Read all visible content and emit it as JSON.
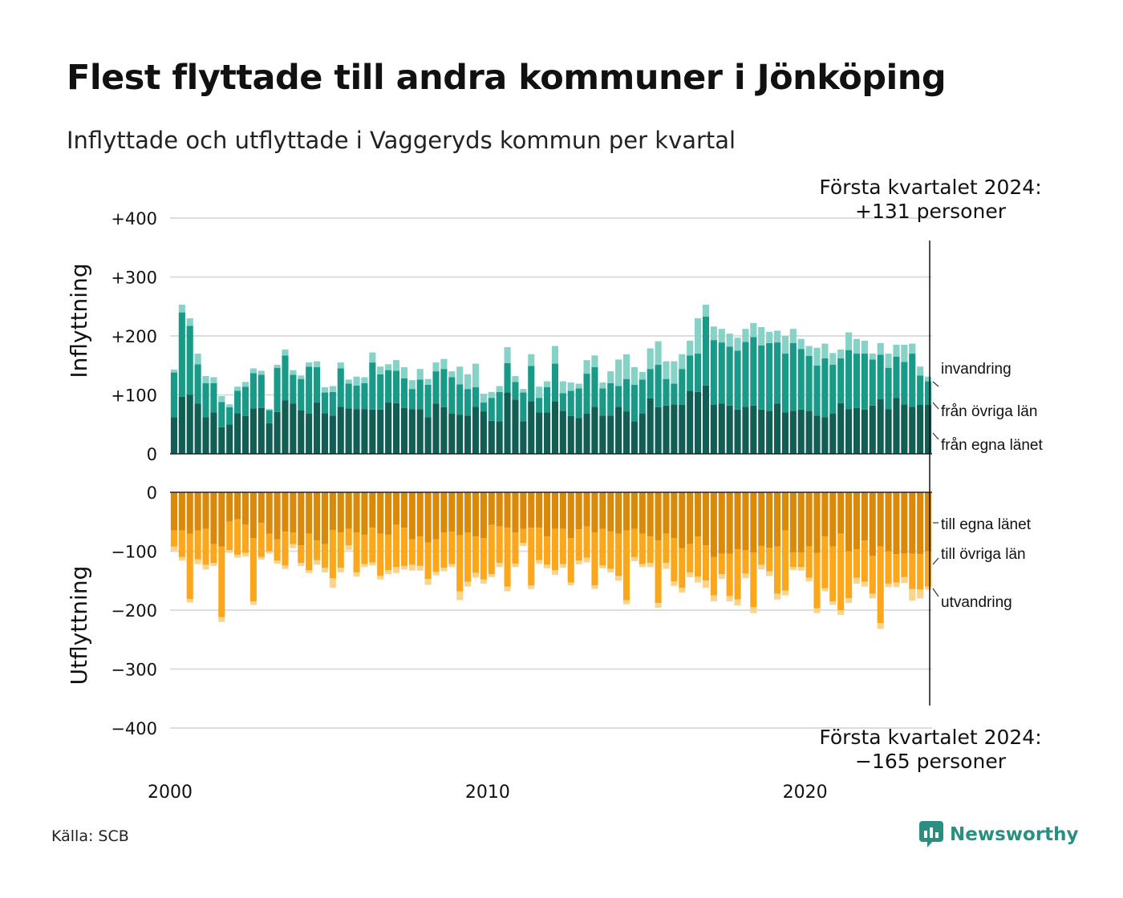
{
  "title": "Flest flyttade till andra kommuner i Jönköping",
  "subtitle": "Inflyttade och utflyttade i Vaggeryds kommun per kvartal",
  "source": "Källa: SCB",
  "brand": "Newsworthy",
  "colors": {
    "in_county": "#125e55",
    "in_other": "#199a88",
    "in_immigration": "#86d2c7",
    "out_county": "#d98a0b",
    "out_other": "#fba71c",
    "out_emigration": "#fad48d",
    "grid": "#dddddd",
    "brand": "#2a8f80"
  },
  "chart_data": {
    "type": "bar",
    "stacked": true,
    "x_start": 2000,
    "x_end": 2024,
    "periods_per_year": 4,
    "xticks": [
      "2000",
      "2010",
      "2020"
    ],
    "panels": [
      {
        "name": "inflyttning",
        "ylabel": "Inflyttning",
        "ylim": [
          0,
          400
        ],
        "yticks": [
          "0",
          "+100",
          "+200",
          "+300",
          "+400"
        ],
        "annotation": [
          "Första kvartalet 2024:",
          "+131 personer"
        ],
        "series": [
          {
            "name": "från egna länet",
            "values": [
              62,
              97,
              100,
              85,
              62,
              70,
              45,
              50,
              69,
              64,
              77,
              78,
              52,
              71,
              91,
              85,
              74,
              68,
              87,
              69,
              65,
              80,
              77,
              76,
              76,
              75,
              75,
              87,
              86,
              78,
              76,
              76,
              62,
              85,
              79,
              68,
              66,
              65,
              80,
              72,
              56,
              55,
              104,
              92,
              55,
              89,
              70,
              70,
              89,
              73,
              64,
              61,
              68,
              80,
              65,
              65,
              80,
              72,
              55,
              68,
              94,
              79,
              82,
              84,
              83,
              107,
              105,
              116,
              83,
              85,
              82,
              75,
              80,
              82,
              75,
              73,
              85,
              70,
              73,
              75,
              73,
              65,
              62,
              68,
              86,
              76,
              78,
              75,
              82,
              93,
              76,
              95,
              84,
              80,
              83,
              83
            ],
            "extra": []
          },
          {
            "name": "från övriga län",
            "values": [
              76,
              143,
              117,
              67,
              58,
              50,
              43,
              29,
              38,
              50,
              60,
              56,
              22,
              75,
              76,
              49,
              53,
              80,
              60,
              35,
              40,
              65,
              42,
              40,
              44,
              80,
              60,
              55,
              55,
              50,
              34,
              50,
              55,
              55,
              65,
              62,
              52,
              45,
              33,
              15,
              39,
              50,
              50,
              30,
              49,
              60,
              25,
              43,
              64,
              30,
              43,
              50,
              68,
              67,
              46,
              55,
              35,
              55,
              62,
              58,
              50,
              72,
              45,
              35,
              61,
              60,
              65,
              117,
              110,
              104,
              100,
              100,
              110,
              116,
              109,
              115,
              104,
              100,
              115,
              103,
              93,
              85,
              100,
              83,
              76,
              100,
              92,
              95,
              78,
              75,
              70,
              70,
              72,
              90,
              50,
              40
            ],
            "extra": []
          },
          {
            "name": "invandring",
            "values": [
              5,
              13,
              13,
              18,
              12,
              10,
              10,
              5,
              7,
              8,
              8,
              7,
              2,
              5,
              10,
              8,
              6,
              7,
              10,
              9,
              10,
              10,
              7,
              15,
              10,
              17,
              13,
              10,
              18,
              19,
              15,
              18,
              10,
              15,
              17,
              10,
              30,
              25,
              40,
              15,
              10,
              10,
              27,
              10,
              6,
              20,
              19,
              10,
              30,
              20,
              14,
              8,
              23,
              20,
              10,
              20,
              45,
              42,
              30,
              13,
              35,
              40,
              30,
              38,
              25,
              25,
              60,
              20,
              23,
              23,
              22,
              22,
              22,
              24,
              31,
              19,
              20,
              30,
              24,
              17,
              17,
              30,
              25,
              20,
              15,
              30,
              25,
              22,
              10,
              20,
              24,
              20,
              29,
              17,
              15,
              8
            ]
          }
        ]
      },
      {
        "name": "utflyttning",
        "ylabel": "Utflyttning",
        "ylim": [
          -400,
          0
        ],
        "yticks": [
          "0",
          "−100",
          "−200",
          "−300",
          "−400"
        ],
        "annotation": [
          "Första kvartalet 2024:",
          "−165 personer"
        ],
        "series": [
          {
            "name": "till egna länet",
            "values": [
              -65,
              -65,
              -70,
              -65,
              -62,
              -88,
              -92,
              -50,
              -46,
              -55,
              -78,
              -52,
              -70,
              -80,
              -67,
              -68,
              -90,
              -70,
              -82,
              -88,
              -64,
              -68,
              -62,
              -68,
              -72,
              -60,
              -70,
              -72,
              -55,
              -60,
              -80,
              -75,
              -85,
              -80,
              -68,
              -67,
              -73,
              -68,
              -75,
              -78,
              -55,
              -58,
              -60,
              -68,
              -62,
              -60,
              -60,
              -75,
              -62,
              -62,
              -78,
              -63,
              -58,
              -68,
              -62,
              -66,
              -70,
              -65,
              -62,
              -70,
              -75,
              -82,
              -70,
              -78,
              -95,
              -88,
              -75,
              -90,
              -110,
              -104,
              -104,
              -97,
              -98,
              -102,
              -91,
              -94,
              -92,
              -65,
              -102,
              -102,
              -92,
              -103,
              -75,
              -92,
              -70,
              -100,
              -97,
              -82,
              -108,
              -92,
              -100,
              -105,
              -104,
              -104,
              -105,
              -100
            ],
            "extra": []
          },
          {
            "name": "till övriga län",
            "values": [
              -27,
              -45,
              -111,
              -49,
              -61,
              -32,
              -120,
              -48,
              -60,
              -48,
              -107,
              -58,
              -30,
              -36,
              -57,
              -20,
              -30,
              -62,
              -33,
              -40,
              -82,
              -60,
              -28,
              -68,
              -50,
              -59,
              -72,
              -60,
              -72,
              -65,
              -43,
              -50,
              -62,
              -55,
              -60,
              -55,
              -95,
              -84,
              -62,
              -70,
              -84,
              -62,
              -100,
              -53,
              -24,
              -98,
              -55,
              -48,
              -70,
              -60,
              -75,
              -53,
              -53,
              -90,
              -62,
              -64,
              -72,
              -118,
              -48,
              -52,
              -45,
              -106,
              -50,
              -73,
              -67,
              -48,
              -68,
              -60,
              -65,
              -35,
              -72,
              -85,
              -40,
              -93,
              -32,
              -40,
              -80,
              -102,
              -25,
              -25,
              -53,
              -94,
              -88,
              -93,
              -130,
              -80,
              -48,
              -70,
              -64,
              -130,
              -55,
              -48,
              -40,
              -60,
              -60,
              -60
            ],
            "extra": []
          },
          {
            "name": "utvandring",
            "values": [
              -8,
              -6,
              -6,
              -8,
              -8,
              -5,
              -8,
              -5,
              -5,
              -6,
              -6,
              -4,
              -4,
              -5,
              -6,
              -7,
              -5,
              -5,
              -8,
              -8,
              -16,
              -8,
              -8,
              -7,
              -5,
              -5,
              -6,
              -7,
              -10,
              -6,
              -10,
              -8,
              -10,
              -6,
              -6,
              -5,
              -15,
              -8,
              -8,
              -7,
              -5,
              -7,
              -8,
              -6,
              -5,
              -6,
              -6,
              -6,
              -8,
              -6,
              -5,
              -6,
              -8,
              -6,
              -5,
              -6,
              -8,
              -7,
              -7,
              -5,
              -7,
              -8,
              -10,
              -8,
              -8,
              -8,
              -10,
              -12,
              -10,
              -8,
              -9,
              -10,
              -8,
              -10,
              -8,
              -8,
              -10,
              -8,
              -5,
              -6,
              -6,
              -8,
              -5,
              -6,
              -8,
              -8,
              -10,
              -8,
              -8,
              -10,
              -6,
              -8,
              -10,
              -20,
              -15,
              -5
            ]
          }
        ]
      }
    ],
    "series_labels_in": [
      "invandring",
      "från övriga län",
      "från egna länet"
    ],
    "series_labels_out": [
      "till egna länet",
      "till övriga län",
      "utvandring"
    ]
  }
}
